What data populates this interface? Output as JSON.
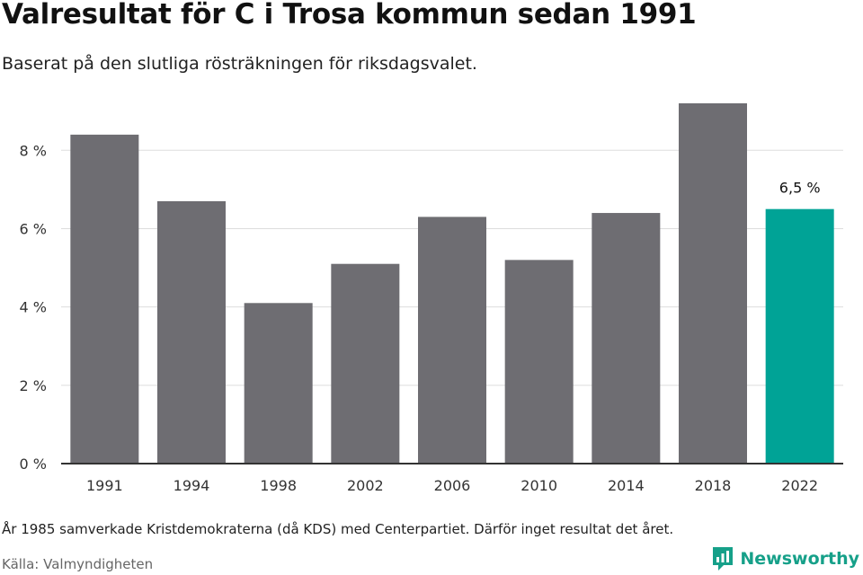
{
  "chart_data": {
    "type": "bar",
    "title": "Valresultat för C i Trosa kommun sedan 1991",
    "subtitle": "Baserat på den slutliga rösträkningen för riksdagsvalet.",
    "xlabel": "",
    "ylabel": "",
    "categories": [
      "1991",
      "1994",
      "1998",
      "2002",
      "2006",
      "2010",
      "2014",
      "2018",
      "2022"
    ],
    "values": [
      8.4,
      6.7,
      4.1,
      5.1,
      6.3,
      5.2,
      6.4,
      9.2,
      6.5
    ],
    "ylim": [
      0,
      9.2
    ],
    "yticks": [
      0,
      2,
      4,
      6,
      8
    ],
    "ytick_labels": [
      "0 %",
      "2 %",
      "4 %",
      "6 %",
      "8 %"
    ],
    "grid": true,
    "highlight_index": 8,
    "highlight_label": "6,5 %",
    "colors": {
      "bar": "#6e6d72",
      "highlight": "#00a396",
      "grid": "#dddddd",
      "axis": "#333333"
    }
  },
  "footnote": "År 1985 samverkade Kristdemokraterna (då KDS) med Centerpartiet. Därför inget resultat det året.",
  "source": "Källa: Valmyndigheten",
  "brand": {
    "name": "Newsworthy",
    "icon": "newsworthy-logo-icon",
    "color": "#16a089"
  }
}
